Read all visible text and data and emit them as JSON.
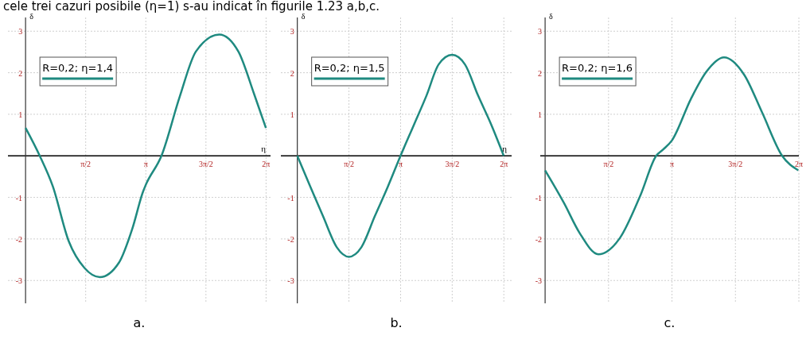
{
  "chart_data": [
    {
      "type": "line",
      "title": "cele trei cazuri posibile (η=1) s-au indicat în figurile 1.23 a,b,c.",
      "xlabel": "η",
      "ylabel": "δ",
      "annotations": [
        "a."
      ],
      "legend": "top left",
      "grid": true,
      "xlim": [
        -0.46,
        6.4
      ],
      "ylim": [
        -3.55,
        3.33
      ],
      "xticks": [
        {
          "value": 1.5708,
          "label": "π/2"
        },
        {
          "value": 3.1416,
          "label": "π"
        },
        {
          "value": 4.7124,
          "label": "3π/2"
        },
        {
          "value": 6.2832,
          "label": "2π"
        }
      ],
      "yticks": [
        -3,
        -2,
        -1,
        1,
        2,
        3
      ],
      "series": [
        {
          "name": "R=0,2; η=1,4",
          "color": "#1f8a80",
          "x": [
            0,
            0.37,
            0.71,
            1.13,
            1.54,
            1.94,
            2.44,
            2.79,
            3.07,
            3.14,
            3.55,
            4.03,
            4.45,
            5.06,
            5.56,
            5.97,
            6.28
          ],
          "values": [
            0.67,
            0,
            -0.73,
            -2.06,
            -2.7,
            -2.92,
            -2.57,
            -1.75,
            -0.86,
            -0.7,
            0,
            1.43,
            2.51,
            2.92,
            2.51,
            1.49,
            0.67
          ]
        }
      ]
    },
    {
      "type": "line",
      "xlabel": "η",
      "ylabel": "δ",
      "annotations": [
        "b."
      ],
      "legend": "top left",
      "grid": true,
      "xlim": [
        -0.5,
        6.52
      ],
      "ylim": [
        -3.55,
        3.33
      ],
      "xticks": [
        {
          "value": 1.5708,
          "label": "π/2"
        },
        {
          "value": 3.1416,
          "label": "π"
        },
        {
          "value": 4.7124,
          "label": "3π/2"
        },
        {
          "value": 6.2832,
          "label": "2π"
        }
      ],
      "yticks": [
        -3,
        -2,
        -1,
        1,
        2,
        3
      ],
      "series": [
        {
          "name": "R=0,2; η=1,5",
          "color": "#1f8a80",
          "x": [
            0,
            0.4,
            0.78,
            1.2,
            1.57,
            1.95,
            2.36,
            2.75,
            3.14,
            3.55,
            3.93,
            4.3,
            4.71,
            5.1,
            5.5,
            5.9,
            6.28
          ],
          "values": [
            0,
            -0.75,
            -1.45,
            -2.2,
            -2.43,
            -2.2,
            -1.45,
            -0.75,
            0,
            0.75,
            1.45,
            2.2,
            2.43,
            2.2,
            1.45,
            0.75,
            0
          ]
        }
      ]
    },
    {
      "type": "line",
      "ylabel": "δ",
      "annotations": [
        "c."
      ],
      "legend": "top left",
      "grid": true,
      "xlim": [
        -0.12,
        6.2832
      ],
      "ylim": [
        -3.55,
        3.33
      ],
      "xticks": [
        {
          "value": 1.5708,
          "label": "π/2"
        },
        {
          "value": 3.1416,
          "label": "π"
        },
        {
          "value": 4.7124,
          "label": "3π/2"
        },
        {
          "value": 6.2832,
          "label": "2π"
        }
      ],
      "yticks": [
        -3,
        -2,
        -1,
        1,
        2,
        3
      ],
      "series": [
        {
          "name": "R=0,2; η=1,6",
          "color": "#1f8a80",
          "x": [
            0,
            0.47,
            0.85,
            1.32,
            1.85,
            2.36,
            2.75,
            2.92,
            3.14,
            3.61,
            3.99,
            4.43,
            4.93,
            5.37,
            5.87,
            6.27
          ],
          "values": [
            -0.35,
            -1.14,
            -1.85,
            -2.37,
            -1.98,
            -0.95,
            0,
            0.15,
            0.37,
            1.37,
            2.02,
            2.37,
            1.95,
            1.05,
            0,
            -0.35
          ]
        }
      ]
    }
  ]
}
